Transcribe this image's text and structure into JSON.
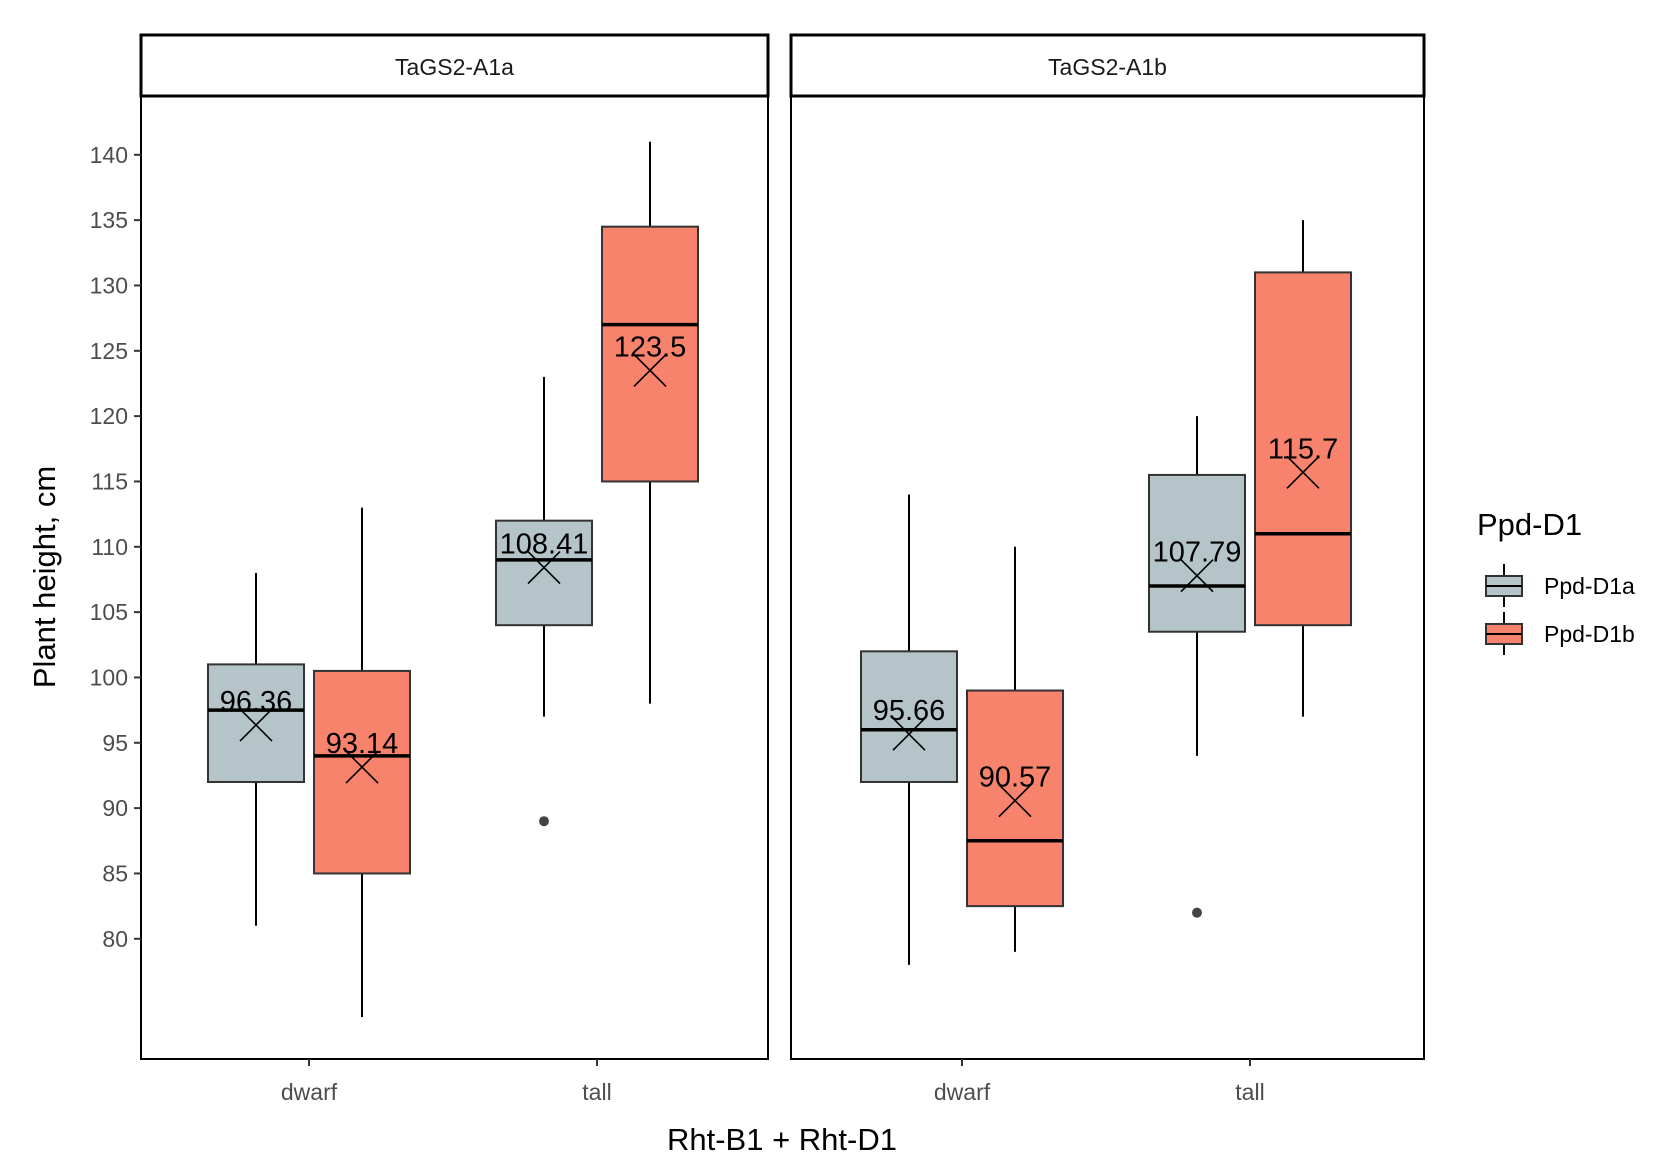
{
  "chart_data": {
    "type": "box",
    "xlabel": "Rht-B1 + Rht-D1",
    "ylabel": "Plant height, cm",
    "ylim": [
      70.8,
      144.5
    ],
    "yticks": [
      80,
      85,
      90,
      95,
      100,
      105,
      110,
      115,
      120,
      125,
      130,
      135,
      140
    ],
    "categories": [
      "dwarf",
      "tall"
    ],
    "legend": {
      "title": "Ppd-D1",
      "position": "right",
      "entries": [
        {
          "name": "Ppd-D1a",
          "color": "#B4C4C8"
        },
        {
          "name": "Ppd-D1b",
          "color": "#F8836D"
        }
      ]
    },
    "facets": [
      {
        "label": "TaGS2-A1a",
        "boxes": [
          {
            "category": "dwarf",
            "series": "Ppd-D1a",
            "min": 81,
            "q1": 92,
            "median": 97.5,
            "q3": 101,
            "max": 108,
            "mean": 96.36,
            "mean_label": "96.36",
            "outliers": []
          },
          {
            "category": "dwarf",
            "series": "Ppd-D1b",
            "min": 74,
            "q1": 85,
            "median": 94,
            "q3": 100.5,
            "max": 113,
            "mean": 93.14,
            "mean_label": "93.14",
            "outliers": []
          },
          {
            "category": "tall",
            "series": "Ppd-D1a",
            "min": 97,
            "q1": 104,
            "median": 109,
            "q3": 112,
            "max": 123,
            "mean": 108.41,
            "mean_label": "108.41",
            "outliers": [
              89
            ]
          },
          {
            "category": "tall",
            "series": "Ppd-D1b",
            "min": 98,
            "q1": 115,
            "median": 127,
            "q3": 134.5,
            "max": 141,
            "mean": 123.5,
            "mean_label": "123.5",
            "outliers": []
          }
        ]
      },
      {
        "label": "TaGS2-A1b",
        "boxes": [
          {
            "category": "dwarf",
            "series": "Ppd-D1a",
            "min": 78,
            "q1": 92,
            "median": 96,
            "q3": 102,
            "max": 114,
            "mean": 95.66,
            "mean_label": "95.66",
            "outliers": []
          },
          {
            "category": "dwarf",
            "series": "Ppd-D1b",
            "min": 79,
            "q1": 82.5,
            "median": 87.5,
            "q3": 99,
            "max": 110,
            "mean": 90.57,
            "mean_label": "90.57",
            "outliers": []
          },
          {
            "category": "tall",
            "series": "Ppd-D1a",
            "min": 94,
            "q1": 103.5,
            "median": 107,
            "q3": 115.5,
            "max": 120,
            "mean": 107.79,
            "mean_label": "107.79",
            "outliers": [
              82
            ]
          },
          {
            "category": "tall",
            "series": "Ppd-D1b",
            "min": 97,
            "q1": 104,
            "median": 111,
            "q3": 131,
            "max": 135,
            "mean": 115.7,
            "mean_label": "115.7",
            "outliers": []
          }
        ]
      }
    ]
  }
}
